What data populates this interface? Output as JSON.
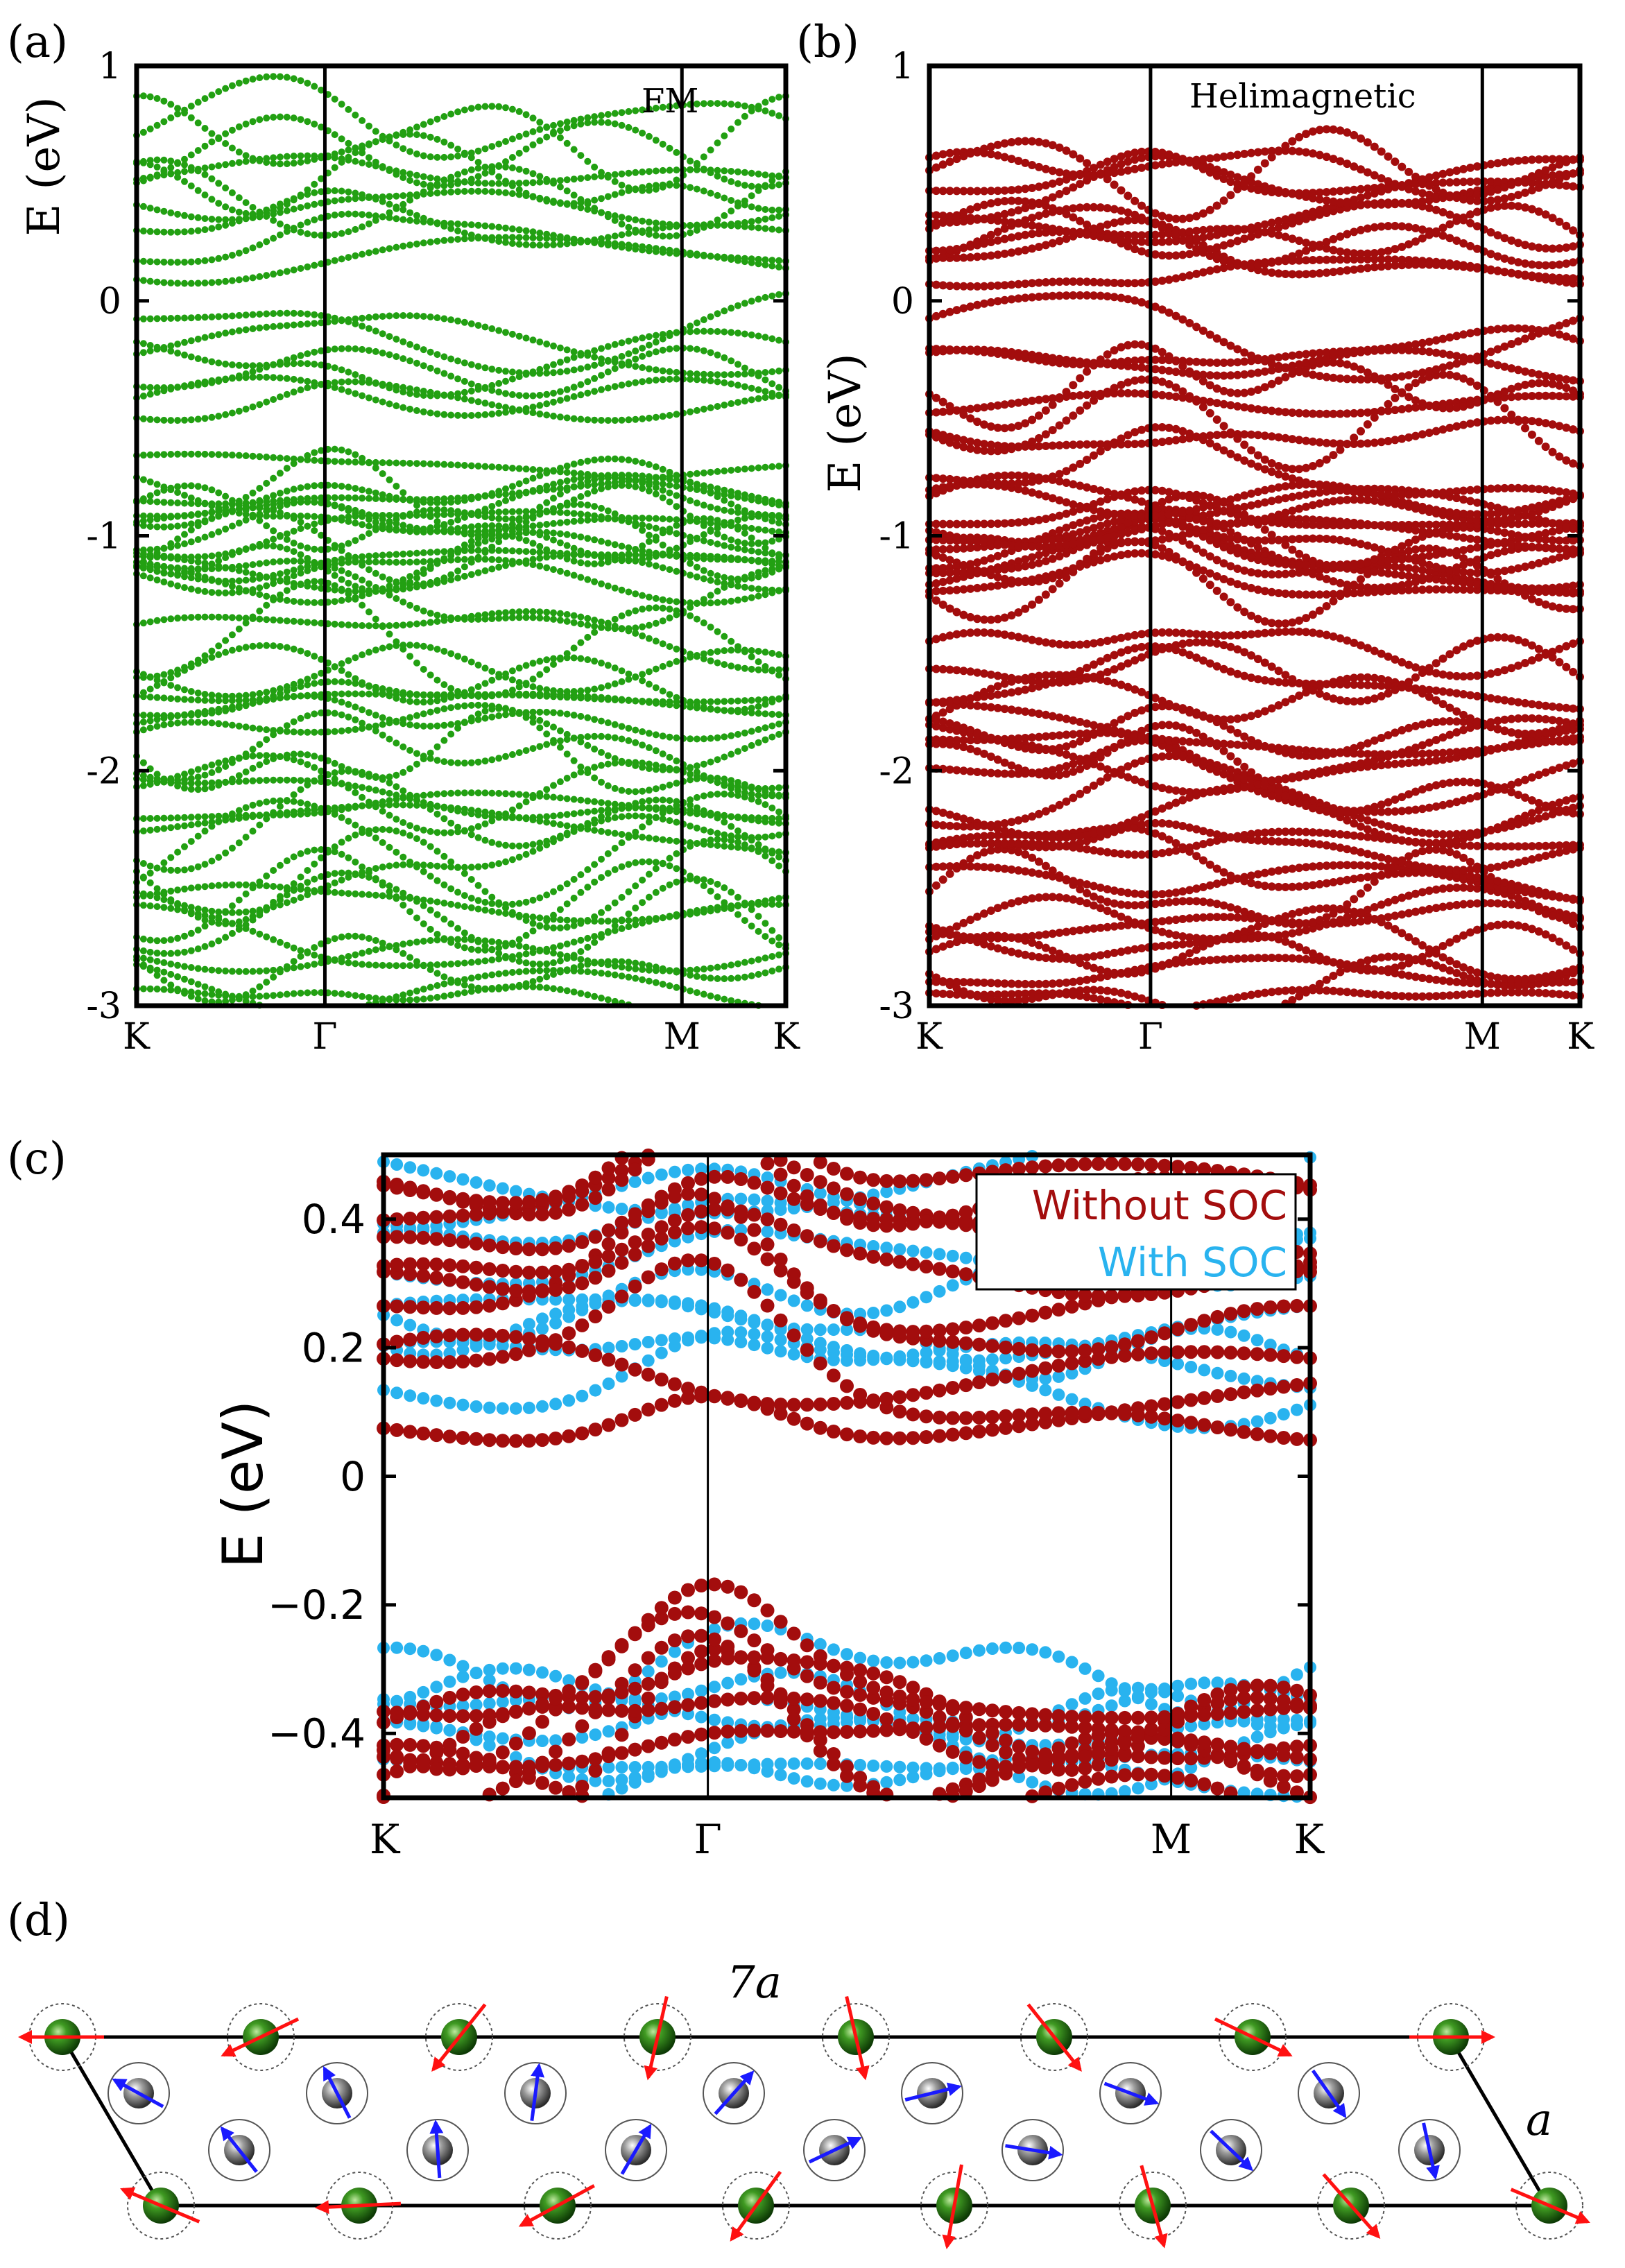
{
  "chart_data": [
    {
      "type": "scatter",
      "panel_label": "(a)",
      "title": "FM",
      "ylabel": "E (eV)",
      "ylim": [
        -3,
        1
      ],
      "yticks": [
        "1",
        "0",
        "-1",
        "-2",
        "-3"
      ],
      "ytick_values": [
        1,
        0,
        -1,
        -2,
        -3
      ],
      "xticks": [
        "K",
        "Γ",
        "M",
        "K"
      ],
      "xtick_values": [
        0,
        0.29,
        0.84,
        1
      ],
      "color": "#22a012"
    },
    {
      "type": "scatter",
      "panel_label": "(b)",
      "title": "Helimagnetic",
      "ylabel": "E (eV)",
      "ylim": [
        -3,
        1
      ],
      "yticks": [
        "1",
        "0",
        "-1",
        "-2",
        "-3"
      ],
      "ytick_values": [
        1,
        0,
        -1,
        -2,
        -3
      ],
      "xticks": [
        "K",
        "Γ",
        "M",
        "K"
      ],
      "xtick_values": [
        0,
        0.34,
        0.85,
        1
      ],
      "color": "#a30d0d"
    },
    {
      "type": "scatter",
      "panel_label": "(c)",
      "ylabel": "E (eV)",
      "ylim": [
        -0.5,
        0.5
      ],
      "yticks": [
        "0.4",
        "0.2",
        "0",
        "−0.2",
        "−0.4"
      ],
      "ytick_values": [
        0.4,
        0.2,
        0,
        -0.2,
        -0.4
      ],
      "xticks": [
        "K",
        "Γ",
        "M",
        "K"
      ],
      "xtick_values": [
        0,
        0.35,
        0.85,
        1
      ],
      "legend": [
        "Without SOC",
        "With SOC"
      ],
      "legend_position": "top-right",
      "series": [
        {
          "name": "Without SOC",
          "color": "#a30d0d"
        },
        {
          "name": "With SOC",
          "color": "#29b3ef"
        }
      ]
    }
  ],
  "structure": {
    "panel_label": "(d)",
    "supercell_label": "7a",
    "lattice_label": "a"
  }
}
